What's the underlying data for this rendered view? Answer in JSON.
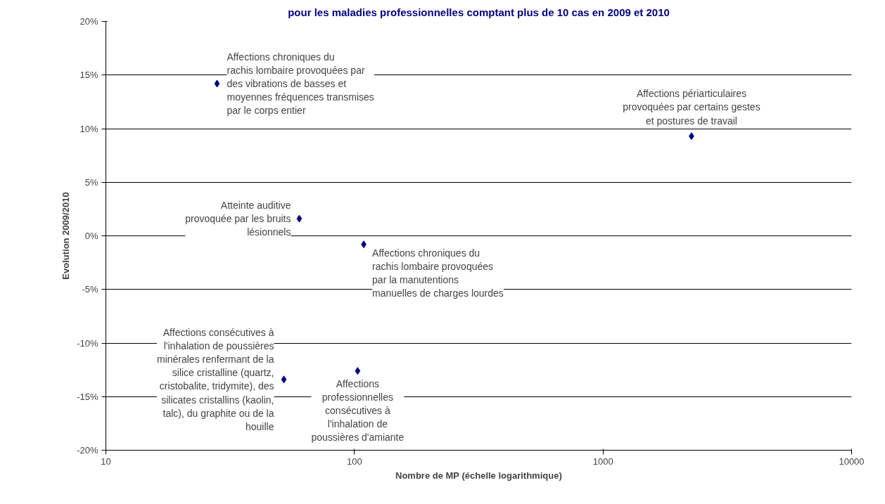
{
  "chart_data": {
    "type": "scatter",
    "title": "pour les maladies professionnelles comptant plus de 10 cas en 2009 et 2010",
    "xlabel": "Nombre de MP (échelle logarithmique)",
    "ylabel": "Evolution 2009/2010",
    "log": "x",
    "marker": "diamond",
    "grid": "y",
    "xlim": [
      10,
      10000
    ],
    "xticks": [
      10,
      100,
      1000,
      10000
    ],
    "ylim": [
      -20,
      20
    ],
    "yticks": [
      {
        "value": -20,
        "label": "-20%"
      },
      {
        "value": -15,
        "label": "-15%"
      },
      {
        "value": -10,
        "label": "-10%"
      },
      {
        "value": -5,
        "label": "-5%"
      },
      {
        "value": 0,
        "label": "0%"
      },
      {
        "value": 5,
        "label": "5%"
      },
      {
        "value": 10,
        "label": "10%"
      },
      {
        "value": 15,
        "label": "15%"
      },
      {
        "value": 20,
        "label": "20%"
      }
    ],
    "series": [
      {
        "color": "#000080",
        "x": [
          28,
          60,
          109,
          2270,
          52,
          103
        ],
        "values": [
          14.2,
          1.6,
          -0.8,
          9.3,
          -13.4,
          -12.6
        ]
      }
    ],
    "annotations": [
      {
        "text": "Affections chroniques du rachis lombaire provoquées par des vibrations de basses et moyennes fréquences transmises par le corps entier",
        "x": 28,
        "y": 14.2
      },
      {
        "text": "Atteinte auditive provoquée par les bruits lésionnels",
        "x": 60,
        "y": 1.6
      },
      {
        "text": "Affections chroniques du rachis lombaire provoquées par la manutentions manuelles de charges lourdes",
        "x": 109,
        "y": -0.8
      },
      {
        "text": "Affections périarticulaires provoquées par certains gestes et postures de travail",
        "x": 2270,
        "y": 9.3
      },
      {
        "text": "Affections consécutives à l'inhalation de poussières minérales renfermant de la silice cristalline (quartz, cristobalite, tridymite), des silicates cristallins (kaolin, talc), du graphite ou de la houille",
        "x": 52,
        "y": -13.4
      },
      {
        "text": "Affections professionnelles consécutives à l'inhalation de poussières d'amiante",
        "x": 103,
        "y": -12.6
      }
    ]
  }
}
